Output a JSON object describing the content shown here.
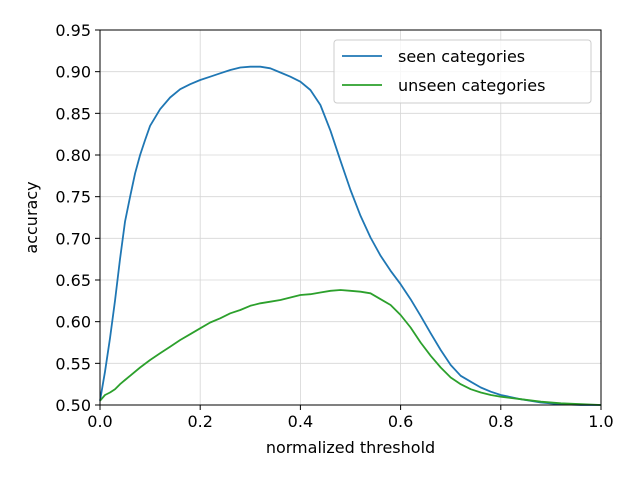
{
  "chart_data": {
    "type": "line",
    "title": "",
    "xlabel": "normalized threshold",
    "ylabel": "accuracy",
    "xlim": [
      0.0,
      1.0
    ],
    "ylim": [
      0.5,
      0.95
    ],
    "xticks": [
      "0.0",
      "0.2",
      "0.4",
      "0.6",
      "0.8",
      "1.0"
    ],
    "yticks": [
      "0.50",
      "0.55",
      "0.60",
      "0.65",
      "0.70",
      "0.75",
      "0.80",
      "0.85",
      "0.90",
      "0.95"
    ],
    "grid": true,
    "legend_position": "top-right",
    "series": [
      {
        "name": "seen categories",
        "color": "#1f77b4",
        "x": [
          0.0,
          0.01,
          0.02,
          0.03,
          0.04,
          0.05,
          0.06,
          0.07,
          0.08,
          0.09,
          0.1,
          0.12,
          0.14,
          0.16,
          0.18,
          0.2,
          0.22,
          0.24,
          0.26,
          0.28,
          0.3,
          0.32,
          0.34,
          0.36,
          0.38,
          0.4,
          0.42,
          0.44,
          0.46,
          0.48,
          0.5,
          0.52,
          0.54,
          0.56,
          0.58,
          0.6,
          0.62,
          0.64,
          0.66,
          0.68,
          0.7,
          0.72,
          0.74,
          0.76,
          0.78,
          0.8,
          0.84,
          0.88,
          0.92,
          0.96,
          1.0
        ],
        "y": [
          0.505,
          0.54,
          0.58,
          0.625,
          0.675,
          0.72,
          0.75,
          0.778,
          0.8,
          0.818,
          0.835,
          0.855,
          0.869,
          0.879,
          0.885,
          0.89,
          0.894,
          0.898,
          0.902,
          0.905,
          0.906,
          0.906,
          0.904,
          0.899,
          0.894,
          0.888,
          0.878,
          0.86,
          0.829,
          0.793,
          0.758,
          0.727,
          0.701,
          0.679,
          0.661,
          0.645,
          0.627,
          0.607,
          0.586,
          0.566,
          0.548,
          0.535,
          0.528,
          0.521,
          0.516,
          0.512,
          0.507,
          0.503,
          0.501,
          0.5,
          0.5
        ]
      },
      {
        "name": "unseen categories",
        "color": "#2ca02c",
        "x": [
          0.0,
          0.01,
          0.02,
          0.03,
          0.04,
          0.05,
          0.06,
          0.08,
          0.1,
          0.12,
          0.14,
          0.16,
          0.18,
          0.2,
          0.22,
          0.24,
          0.26,
          0.28,
          0.3,
          0.32,
          0.34,
          0.36,
          0.38,
          0.4,
          0.42,
          0.44,
          0.46,
          0.48,
          0.5,
          0.52,
          0.54,
          0.56,
          0.58,
          0.6,
          0.62,
          0.64,
          0.66,
          0.68,
          0.7,
          0.72,
          0.74,
          0.76,
          0.78,
          0.8,
          0.84,
          0.88,
          0.92,
          0.96,
          1.0
        ],
        "y": [
          0.505,
          0.512,
          0.515,
          0.519,
          0.525,
          0.53,
          0.535,
          0.545,
          0.554,
          0.562,
          0.57,
          0.578,
          0.585,
          0.592,
          0.599,
          0.604,
          0.61,
          0.614,
          0.619,
          0.622,
          0.624,
          0.626,
          0.629,
          0.632,
          0.633,
          0.635,
          0.637,
          0.638,
          0.637,
          0.636,
          0.634,
          0.627,
          0.62,
          0.608,
          0.593,
          0.575,
          0.559,
          0.545,
          0.533,
          0.525,
          0.519,
          0.515,
          0.512,
          0.51,
          0.507,
          0.504,
          0.502,
          0.501,
          0.5
        ]
      }
    ]
  }
}
